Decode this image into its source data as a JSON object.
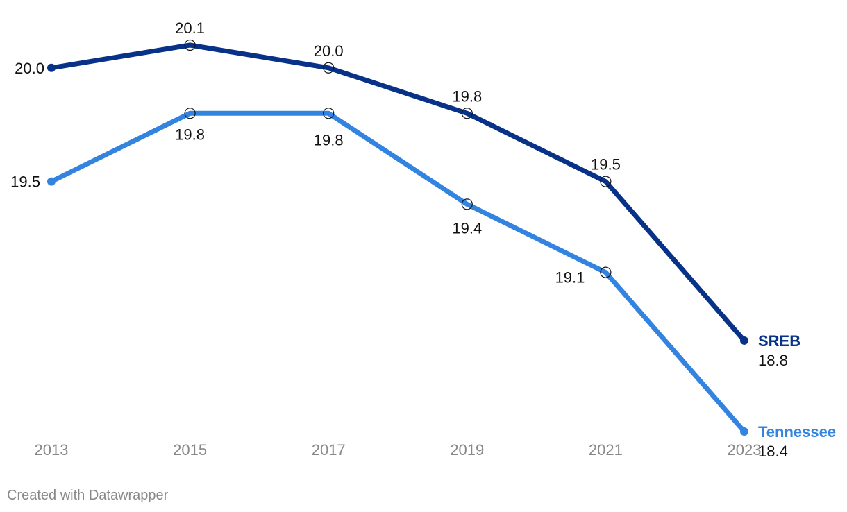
{
  "chart_data": {
    "type": "line",
    "title": "",
    "xlabel": "",
    "ylabel": "",
    "x": [
      "2013",
      "2015",
      "2017",
      "2019",
      "2021",
      "2023"
    ],
    "ylim": [
      18.4,
      20.1
    ],
    "grid": false,
    "legend": "direct labels at line ends",
    "series": [
      {
        "name": "SREB",
        "color": "#073288",
        "values": [
          20.0,
          20.1,
          20.0,
          19.8,
          19.5,
          18.8
        ],
        "labels": [
          "20.0",
          "20.1",
          "20.0",
          "19.8",
          "19.5",
          "18.8"
        ]
      },
      {
        "name": "Tennessee",
        "color": "#3383e0",
        "values": [
          19.5,
          19.8,
          19.8,
          19.4,
          19.1,
          18.4
        ],
        "labels": [
          "19.5",
          "19.8",
          "19.8",
          "19.4",
          "19.1",
          "18.4"
        ]
      }
    ]
  },
  "credit": "Created with Datawrapper"
}
